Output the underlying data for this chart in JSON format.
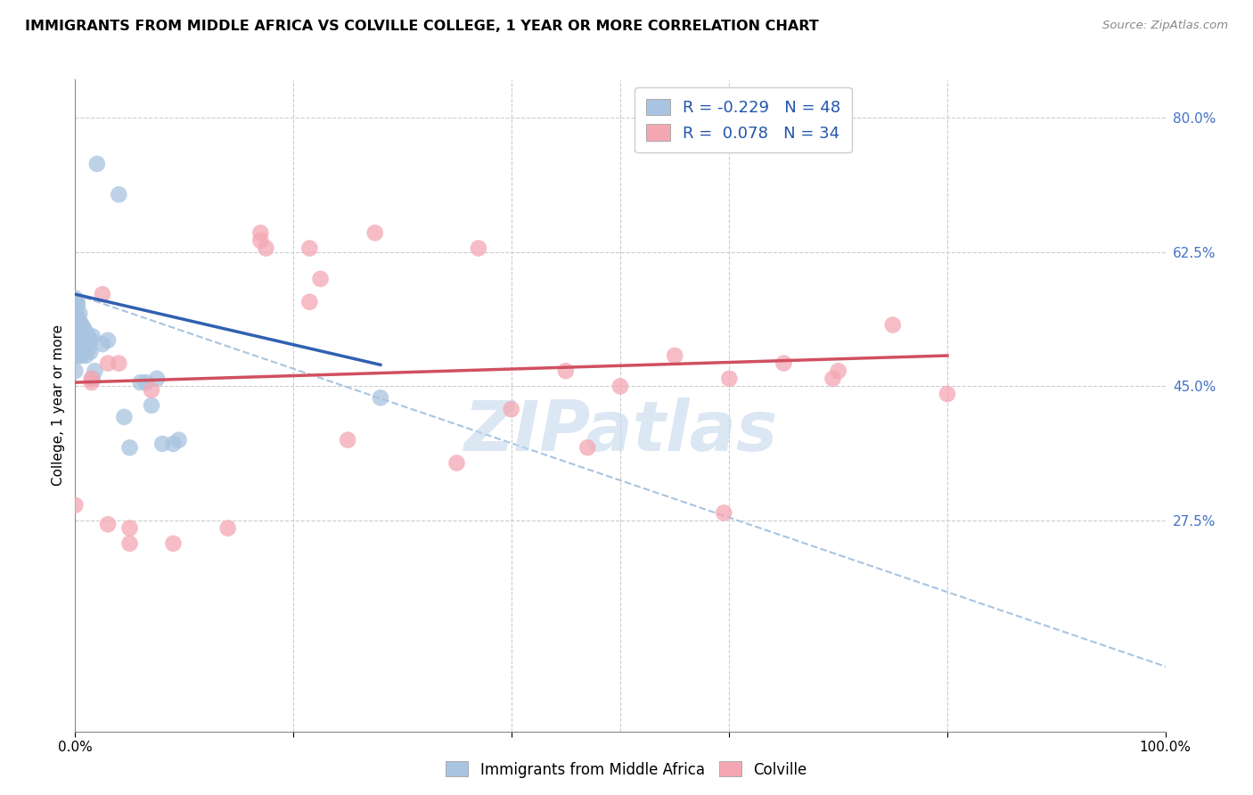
{
  "title": "IMMIGRANTS FROM MIDDLE AFRICA VS COLVILLE COLLEGE, 1 YEAR OR MORE CORRELATION CHART",
  "source": "Source: ZipAtlas.com",
  "ylabel": "College, 1 year or more",
  "xlim": [
    0.0,
    1.0
  ],
  "ylim": [
    0.0,
    0.85
  ],
  "yticks": [
    0.275,
    0.45,
    0.625,
    0.8
  ],
  "ytick_labels": [
    "27.5%",
    "45.0%",
    "62.5%",
    "80.0%"
  ],
  "xticks": [
    0.0,
    0.2,
    0.4,
    0.6,
    0.8,
    1.0
  ],
  "xtick_labels": [
    "0.0%",
    "",
    "",
    "",
    "",
    "100.0%"
  ],
  "blue_color": "#a8c4e0",
  "pink_color": "#f4a7b3",
  "blue_line_color": "#3060b0",
  "pink_line_color": "#d05060",
  "dashed_line_color": "#a8c4e0",
  "watermark": "ZIPatlas",
  "legend_R_blue": "-0.229",
  "legend_N_blue": "48",
  "legend_R_pink": "0.078",
  "legend_N_pink": "34",
  "blue_scatter_x": [
    0.0,
    0.0,
    0.0,
    0.0,
    0.0,
    0.0,
    0.002,
    0.002,
    0.002,
    0.002,
    0.002,
    0.002,
    0.004,
    0.004,
    0.004,
    0.004,
    0.004,
    0.006,
    0.006,
    0.006,
    0.006,
    0.008,
    0.008,
    0.008,
    0.01,
    0.01,
    0.01,
    0.012,
    0.012,
    0.014,
    0.014,
    0.016,
    0.016,
    0.018,
    0.02,
    0.025,
    0.03,
    0.04,
    0.045,
    0.05,
    0.06,
    0.065,
    0.07,
    0.075,
    0.08,
    0.09,
    0.095,
    0.28
  ],
  "blue_scatter_y": [
    0.565,
    0.545,
    0.525,
    0.51,
    0.49,
    0.47,
    0.56,
    0.555,
    0.54,
    0.53,
    0.515,
    0.5,
    0.545,
    0.535,
    0.52,
    0.505,
    0.49,
    0.53,
    0.52,
    0.505,
    0.49,
    0.525,
    0.51,
    0.495,
    0.52,
    0.505,
    0.49,
    0.515,
    0.5,
    0.51,
    0.495,
    0.515,
    0.46,
    0.47,
    0.74,
    0.505,
    0.51,
    0.7,
    0.41,
    0.37,
    0.455,
    0.455,
    0.425,
    0.46,
    0.375,
    0.375,
    0.38,
    0.435
  ],
  "pink_scatter_x": [
    0.0,
    0.015,
    0.015,
    0.025,
    0.03,
    0.03,
    0.04,
    0.05,
    0.05,
    0.07,
    0.09,
    0.14,
    0.17,
    0.17,
    0.175,
    0.215,
    0.215,
    0.225,
    0.25,
    0.275,
    0.35,
    0.37,
    0.4,
    0.45,
    0.47,
    0.5,
    0.55,
    0.595,
    0.6,
    0.65,
    0.695,
    0.7,
    0.75,
    0.8
  ],
  "pink_scatter_y": [
    0.295,
    0.46,
    0.455,
    0.57,
    0.48,
    0.27,
    0.48,
    0.245,
    0.265,
    0.445,
    0.245,
    0.265,
    0.65,
    0.64,
    0.63,
    0.63,
    0.56,
    0.59,
    0.38,
    0.65,
    0.35,
    0.63,
    0.42,
    0.47,
    0.37,
    0.45,
    0.49,
    0.285,
    0.46,
    0.48,
    0.46,
    0.47,
    0.53,
    0.44
  ],
  "blue_trendline_x": [
    0.0,
    0.28
  ],
  "blue_trendline_y": [
    0.57,
    0.478
  ],
  "pink_trendline_x": [
    0.0,
    0.8
  ],
  "pink_trendline_y": [
    0.455,
    0.49
  ],
  "dashed_trendline_x": [
    0.0,
    1.02
  ],
  "dashed_trendline_y": [
    0.57,
    0.075
  ],
  "background_color": "#ffffff",
  "grid_color": "#cccccc",
  "grid_v_positions": [
    0.0,
    0.2,
    0.4,
    0.5,
    0.6,
    0.8,
    1.0
  ]
}
